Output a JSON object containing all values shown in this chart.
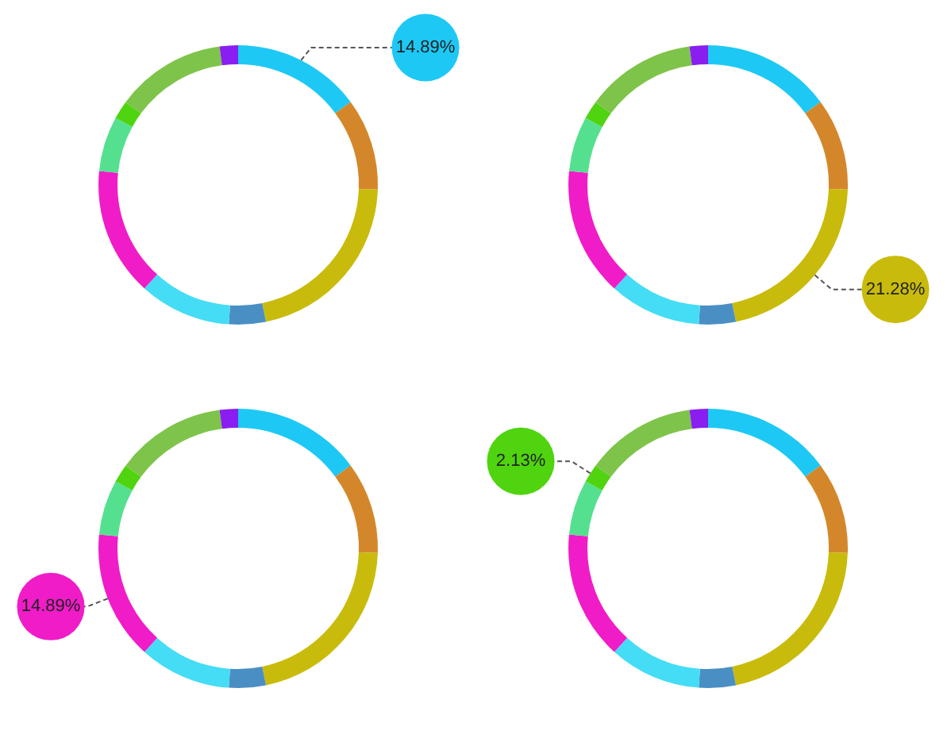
{
  "chart_data": [
    {
      "type": "donut",
      "categories": [
        null,
        null,
        null,
        null,
        null,
        null,
        null,
        null,
        null,
        null
      ],
      "values": [
        14.89,
        10.64,
        21.28,
        4.26,
        10.64,
        14.89,
        6.38,
        2.13,
        12.77,
        2.13
      ],
      "colors": [
        "#1ec8f5",
        "#d4872a",
        "#c9bb0c",
        "#4a8fc4",
        "#45dcf5",
        "#f01cc8",
        "#55e08f",
        "#4fd40f",
        "#7ec44a",
        "#8a1ef0"
      ],
      "value_labels": [
        "14.89%",
        null,
        null,
        null,
        null,
        null,
        null,
        null,
        null,
        null
      ]
    },
    {
      "type": "donut",
      "categories": [
        null,
        null,
        null,
        null,
        null,
        null,
        null,
        null,
        null,
        null
      ],
      "values": [
        14.89,
        10.64,
        21.28,
        4.26,
        10.64,
        14.89,
        6.38,
        2.13,
        12.77,
        2.13
      ],
      "colors": [
        "#1ec8f5",
        "#d4872a",
        "#c9bb0c",
        "#4a8fc4",
        "#45dcf5",
        "#f01cc8",
        "#55e08f",
        "#4fd40f",
        "#7ec44a",
        "#8a1ef0"
      ],
      "value_labels": [
        null,
        null,
        "21.28%",
        null,
        null,
        null,
        null,
        null,
        null,
        null
      ]
    },
    {
      "type": "donut",
      "categories": [
        null,
        null,
        null,
        null,
        null,
        null,
        null,
        null,
        null,
        null
      ],
      "values": [
        14.89,
        10.64,
        21.28,
        4.26,
        10.64,
        14.89,
        6.38,
        2.13,
        12.77,
        2.13
      ],
      "colors": [
        "#1ec8f5",
        "#d4872a",
        "#c9bb0c",
        "#4a8fc4",
        "#45dcf5",
        "#f01cc8",
        "#55e08f",
        "#4fd40f",
        "#7ec44a",
        "#8a1ef0"
      ],
      "value_labels": [
        null,
        null,
        null,
        null,
        null,
        "14.89%",
        null,
        null,
        null,
        null
      ]
    },
    {
      "type": "donut",
      "categories": [
        null,
        null,
        null,
        null,
        null,
        null,
        null,
        null,
        null,
        null
      ],
      "values": [
        14.89,
        10.64,
        21.28,
        4.26,
        10.64,
        14.89,
        6.38,
        2.13,
        12.77,
        2.13
      ],
      "colors": [
        "#1ec8f5",
        "#d4872a",
        "#c9bb0c",
        "#4a8fc4",
        "#45dcf5",
        "#f01cc8",
        "#55e08f",
        "#4fd40f",
        "#7ec44a",
        "#8a1ef0"
      ],
      "value_labels": [
        null,
        null,
        null,
        null,
        null,
        null,
        null,
        "2.13%",
        null,
        null
      ]
    }
  ]
}
